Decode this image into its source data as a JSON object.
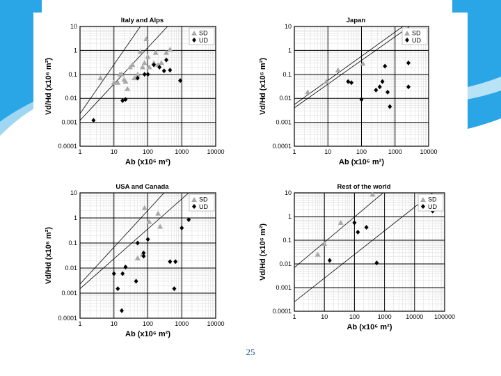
{
  "slide": {
    "page_number": "25"
  },
  "colors": {
    "sd": "#a8a8a8",
    "ud": "#000000",
    "accent": "#1a8fd6"
  },
  "chart_data": [
    {
      "type": "scatter",
      "title": "Italy and Alps",
      "xlabel": "Ab (x10⁶ m²)",
      "ylabel": "Vd/Hd (x10⁶ m²)",
      "x_ticks": [
        "1",
        "10",
        "100",
        "1000",
        "10000"
      ],
      "y_ticks": [
        "0.0001",
        "0.001",
        "0.01",
        "0.1",
        "1",
        "10"
      ],
      "xlim": [
        1,
        10000
      ],
      "ylim": [
        0.0001,
        10
      ],
      "scale": "log-log",
      "legend": [
        "SD",
        "UD"
      ],
      "lines": [
        [
          [
            1,
            0.0023
          ],
          [
            60,
            10
          ]
        ],
        [
          [
            1,
            0.0012
          ],
          [
            380,
            10
          ]
        ]
      ],
      "series": [
        {
          "name": "SD",
          "marker": "triangle",
          "points": [
            [
              4,
              0.07
            ],
            [
              10,
              0.045
            ],
            [
              13,
              0.045
            ],
            [
              15,
              0.1
            ],
            [
              17,
              0.1
            ],
            [
              20,
              0.06
            ],
            [
              22,
              0.05
            ],
            [
              25,
              0.025
            ],
            [
              30,
              0.2
            ],
            [
              35,
              0.25
            ],
            [
              40,
              0.07
            ],
            [
              50,
              0.1
            ],
            [
              60,
              0.9
            ],
            [
              70,
              0.2
            ],
            [
              80,
              0.3
            ],
            [
              90,
              3.0
            ],
            [
              100,
              0.55
            ],
            [
              110,
              0.2
            ],
            [
              150,
              0.3
            ],
            [
              170,
              0.8
            ],
            [
              200,
              0.25
            ],
            [
              250,
              0.3
            ],
            [
              350,
              0.8
            ],
            [
              450,
              1.1
            ]
          ]
        },
        {
          "name": "UD",
          "marker": "diamond",
          "points": [
            [
              2.5,
              0.0012
            ],
            [
              18,
              0.008
            ],
            [
              22,
              0.009
            ],
            [
              50,
              0.07
            ],
            [
              80,
              0.1
            ],
            [
              100,
              0.1
            ],
            [
              150,
              0.25
            ],
            [
              220,
              0.2
            ],
            [
              300,
              0.14
            ],
            [
              350,
              0.4
            ],
            [
              450,
              0.15
            ],
            [
              900,
              0.055
            ]
          ]
        }
      ]
    },
    {
      "type": "scatter",
      "title": "Japan",
      "xlabel": "Ab (x10⁶ m²)",
      "ylabel": "Vd/Hd (x10⁶ m²)",
      "x_ticks": [
        "1",
        "10",
        "100",
        "1000",
        "10000"
      ],
      "y_ticks": [
        "0.0001",
        "0.001",
        "0.01",
        "0.1",
        "1",
        "10"
      ],
      "xlim": [
        1,
        10000
      ],
      "ylim": [
        0.0001,
        10
      ],
      "scale": "log-log",
      "legend": [
        "SD",
        "UD"
      ],
      "lines": [
        [
          [
            1,
            0.0055
          ],
          [
            1700,
            10
          ]
        ],
        [
          [
            1,
            0.004
          ],
          [
            2700,
            10
          ]
        ]
      ],
      "series": [
        {
          "name": "SD",
          "marker": "triangle",
          "points": [
            [
              2.5,
              0.018
            ],
            [
              9,
              0.05
            ],
            [
              20,
              0.15
            ],
            [
              110,
              0.28
            ]
          ]
        },
        {
          "name": "UD",
          "marker": "diamond",
          "points": [
            [
              40,
              0.05
            ],
            [
              50,
              0.045
            ],
            [
              100,
              0.009
            ],
            [
              270,
              0.022
            ],
            [
              350,
              0.03
            ],
            [
              420,
              0.05
            ],
            [
              500,
              0.22
            ],
            [
              600,
              0.018
            ],
            [
              700,
              0.0045
            ],
            [
              2500,
              0.3
            ],
            [
              2500,
              0.03
            ]
          ]
        }
      ]
    },
    {
      "type": "scatter",
      "title": "USA and Canada",
      "xlabel": "Ab (x10⁶ m²)",
      "ylabel": "Vd/Hd (x10⁶ m²)",
      "x_ticks": [
        "1",
        "10",
        "100",
        "1000",
        "10000"
      ],
      "y_ticks": [
        "0.0001",
        "0.001",
        "0.01",
        "0.1",
        "1",
        "10"
      ],
      "xlim": [
        1,
        10000
      ],
      "ylim": [
        0.0001,
        10
      ],
      "scale": "log-log",
      "legend": [
        "SD",
        "UD"
      ],
      "lines": [
        [
          [
            1,
            0.0023
          ],
          [
            300,
            10
          ]
        ],
        [
          [
            1,
            0.0015
          ],
          [
            1600,
            10
          ]
        ]
      ],
      "series": [
        {
          "name": "SD",
          "marker": "triangle",
          "points": [
            [
              50,
              0.025
            ],
            [
              70,
              0.035
            ],
            [
              80,
              2.5
            ],
            [
              110,
              0.7
            ],
            [
              200,
              1.5
            ],
            [
              230,
              0.45
            ]
          ]
        },
        {
          "name": "UD",
          "marker": "diamond",
          "points": [
            [
              10,
              0.006
            ],
            [
              13,
              0.0015
            ],
            [
              17,
              0.0002
            ],
            [
              18,
              0.006
            ],
            [
              22,
              0.011
            ],
            [
              45,
              0.003
            ],
            [
              50,
              0.1
            ],
            [
              75,
              0.03
            ],
            [
              75,
              0.04
            ],
            [
              100,
              0.14
            ],
            [
              450,
              0.018
            ],
            [
              600,
              0.0015
            ],
            [
              650,
              0.018
            ],
            [
              1000,
              0.4
            ],
            [
              1600,
              0.85
            ]
          ]
        }
      ]
    },
    {
      "type": "scatter",
      "title": "Rest of the world",
      "xlabel": "Ab (x10⁶ m²)",
      "ylabel": "Vd/Hd (x10⁶ m²)",
      "x_ticks": [
        "1",
        "10",
        "100",
        "1000",
        "10000",
        "100000"
      ],
      "y_ticks": [
        "0.0001",
        "0.001",
        "0.01",
        "0.1",
        "1",
        "10"
      ],
      "xlim": [
        1,
        100000
      ],
      "ylim": [
        0.0001,
        10
      ],
      "scale": "log-log",
      "legend": [
        "SD",
        "UD"
      ],
      "lines": [
        [
          [
            1,
            0.007
          ],
          [
            900,
            10
          ]
        ],
        [
          [
            1,
            0.00025
          ],
          [
            40000,
            10
          ]
        ]
      ],
      "series": [
        {
          "name": "SD",
          "marker": "triangle",
          "points": [
            [
              6,
              0.025
            ],
            [
              10,
              0.07
            ],
            [
              35,
              0.55
            ],
            [
              400,
              8.5
            ],
            [
              18000,
              4.0
            ]
          ]
        },
        {
          "name": "UD",
          "marker": "diamond",
          "points": [
            [
              15,
              0.014
            ],
            [
              100,
              0.55
            ],
            [
              130,
              0.22
            ],
            [
              250,
              0.35
            ],
            [
              550,
              0.011
            ],
            [
              40000,
              1.7
            ]
          ]
        }
      ]
    }
  ]
}
